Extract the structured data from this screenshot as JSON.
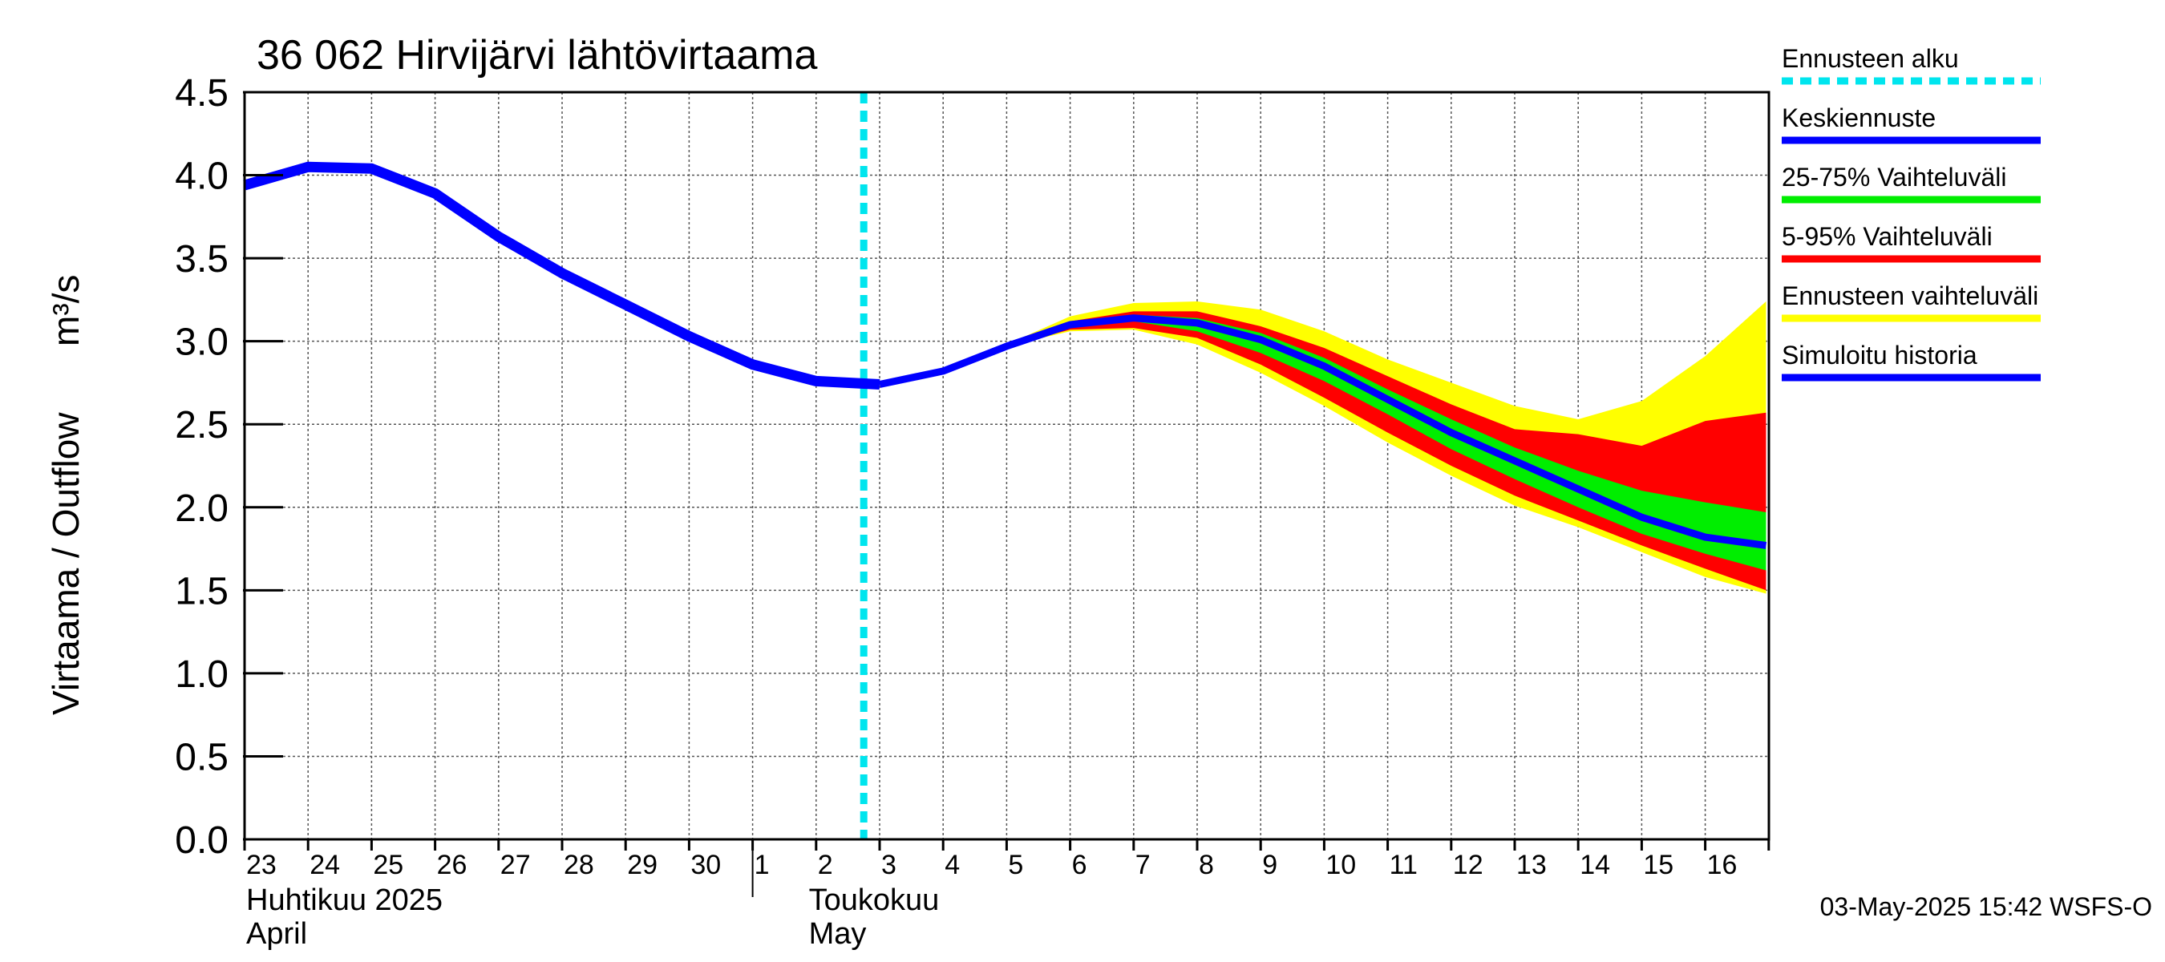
{
  "chart_data": {
    "type": "area",
    "title": "36 062 Hirvijärvi lähtövirtaama",
    "ylabel": "Virtaama / Outflow",
    "yunit": "m³/s",
    "ylim": [
      0.0,
      4.5
    ],
    "yticks": [
      "0.0",
      "0.5",
      "1.0",
      "1.5",
      "2.0",
      "2.5",
      "3.0",
      "3.5",
      "4.0",
      "4.5"
    ],
    "xlim": [
      "2025-04-23",
      "2025-05-16T23:00"
    ],
    "day_labels": [
      "23",
      "24",
      "25",
      "26",
      "27",
      "28",
      "29",
      "30",
      "1",
      "2",
      "3",
      "4",
      "5",
      "6",
      "7",
      "8",
      "9",
      "10",
      "11",
      "12",
      "13",
      "14",
      "15",
      "16"
    ],
    "month_labels": [
      {
        "line1": "Huhtikuu  2025",
        "line2": "April"
      },
      {
        "line1": "Toukokuu",
        "line2": "May"
      }
    ],
    "grid": true,
    "forecast_start": "2025-05-02T18:00",
    "simulated_history": {
      "name": "Simuloitu historia",
      "x": [
        "2025-04-23",
        "2025-04-24",
        "2025-04-25",
        "2025-04-26",
        "2025-04-27",
        "2025-04-28",
        "2025-04-29",
        "2025-04-30",
        "2025-05-01",
        "2025-05-02",
        "2025-05-03"
      ],
      "y": [
        3.94,
        4.05,
        4.04,
        3.89,
        3.63,
        3.41,
        3.22,
        3.03,
        2.86,
        2.76,
        2.74
      ]
    },
    "forecast_x": [
      "2025-05-03",
      "2025-05-04",
      "2025-05-05",
      "2025-05-06",
      "2025-05-07",
      "2025-05-08",
      "2025-05-09",
      "2025-05-10",
      "2025-05-11",
      "2025-05-12",
      "2025-05-13",
      "2025-05-14",
      "2025-05-15",
      "2025-05-16",
      "2025-05-16T23:00"
    ],
    "median_forecast": {
      "name": "Keskiennuste",
      "y": [
        2.74,
        2.82,
        2.97,
        3.1,
        3.14,
        3.11,
        3.01,
        2.85,
        2.65,
        2.45,
        2.28,
        2.11,
        1.94,
        1.82,
        1.77
      ]
    },
    "range_25_75": {
      "name": "25-75% Vaihteluväli",
      "lower": [
        2.74,
        2.82,
        2.97,
        3.09,
        3.12,
        3.06,
        2.93,
        2.76,
        2.56,
        2.35,
        2.17,
        2.0,
        1.84,
        1.72,
        1.62
      ],
      "upper": [
        2.74,
        2.82,
        2.97,
        3.11,
        3.16,
        3.14,
        3.05,
        2.9,
        2.71,
        2.53,
        2.36,
        2.22,
        2.1,
        2.03,
        1.97
      ]
    },
    "range_5_95": {
      "name": "5-95% Vaihteluväli",
      "lower": [
        2.74,
        2.82,
        2.97,
        3.07,
        3.08,
        3.02,
        2.86,
        2.66,
        2.45,
        2.25,
        2.07,
        1.92,
        1.77,
        1.63,
        1.5
      ],
      "upper": [
        2.74,
        2.82,
        2.97,
        3.12,
        3.18,
        3.18,
        3.09,
        2.96,
        2.79,
        2.62,
        2.47,
        2.44,
        2.37,
        2.52,
        2.57
      ]
    },
    "forecast_range": {
      "name": "Ennusteen vaihteluväli",
      "lower": [
        2.74,
        2.82,
        2.97,
        3.06,
        3.07,
        2.98,
        2.81,
        2.61,
        2.39,
        2.19,
        2.01,
        1.88,
        1.73,
        1.58,
        1.48
      ],
      "upper": [
        2.74,
        2.82,
        2.98,
        3.15,
        3.23,
        3.24,
        3.19,
        3.06,
        2.89,
        2.75,
        2.61,
        2.53,
        2.64,
        2.91,
        3.24
      ]
    },
    "legend": [
      {
        "label": "Ennusteen alku",
        "color": "#00e5ee",
        "style": "dashed"
      },
      {
        "label": "Keskiennuste",
        "color": "#0000ff",
        "style": "line"
      },
      {
        "label": "25-75% Vaihteluväli",
        "color": "#00ee00",
        "style": "line"
      },
      {
        "label": "5-95% Vaihteluväli",
        "color": "#ff0000",
        "style": "line"
      },
      {
        "label": "Ennusteen vaihteluväli",
        "color": "#ffff00",
        "style": "line"
      },
      {
        "label": "Simuloitu historia",
        "color": "#0000ff",
        "style": "line"
      }
    ],
    "legend_placement": "right",
    "timestamp": "03-May-2025 15:42 WSFS-O"
  }
}
